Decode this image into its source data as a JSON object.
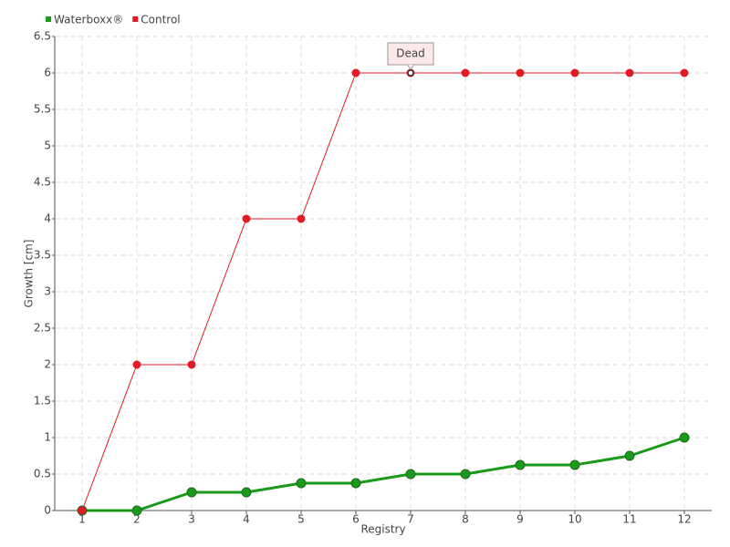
{
  "chart_data": {
    "type": "line",
    "x_label": "Registry",
    "y_label": "Growth [cm]",
    "categories": [
      "1",
      "2",
      "3",
      "4",
      "5",
      "6",
      "7",
      "8",
      "9",
      "10",
      "11",
      "12"
    ],
    "series": [
      {
        "name": "Waterboxx®",
        "color": "#1a9a1a",
        "values": [
          0,
          0,
          0.25,
          0.25,
          0.375,
          0.375,
          0.5,
          0.5,
          0.625,
          0.625,
          0.75,
          1
        ]
      },
      {
        "name": "Control",
        "color": "#e01b24",
        "values": [
          0,
          2,
          2,
          4,
          4,
          6,
          6,
          6,
          6,
          6,
          6,
          6
        ]
      }
    ],
    "ylim": [
      0,
      6.5
    ],
    "yticks": [
      0,
      0.5,
      1,
      1.5,
      2,
      2.5,
      3,
      3.5,
      4,
      4.5,
      5,
      5.5,
      6,
      6.5
    ],
    "grid": true,
    "annotations": [
      {
        "text": "Dead",
        "x": "7",
        "y": 6
      }
    ]
  }
}
